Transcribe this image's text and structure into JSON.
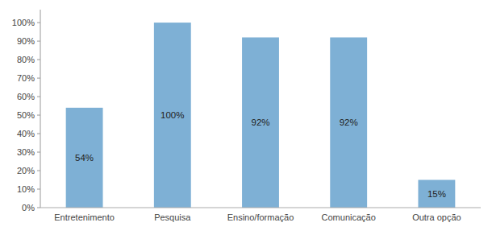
{
  "chart_data": {
    "type": "bar",
    "categories": [
      "Entretenimento",
      "Pesquisa",
      "Ensino/formação",
      "Comunicação",
      "Outra opção"
    ],
    "values": [
      54,
      100,
      92,
      92,
      15
    ],
    "value_labels": [
      "54%",
      "100%",
      "92%",
      "92%",
      "15%"
    ],
    "data_labels": true,
    "color": "#7EB0D5",
    "ylim": [
      0,
      107
    ],
    "yticks": [
      {
        "value": 0,
        "label": "0%"
      },
      {
        "value": 10,
        "label": "10%"
      },
      {
        "value": 20,
        "label": "20%"
      },
      {
        "value": 30,
        "label": "30%"
      },
      {
        "value": 40,
        "label": "40%"
      },
      {
        "value": 50,
        "label": "50%"
      },
      {
        "value": 60,
        "label": "60%"
      },
      {
        "value": 70,
        "label": "70%"
      },
      {
        "value": 80,
        "label": "80%"
      },
      {
        "value": 90,
        "label": "90%"
      },
      {
        "value": 100,
        "label": "100%"
      }
    ],
    "grid": false
  }
}
